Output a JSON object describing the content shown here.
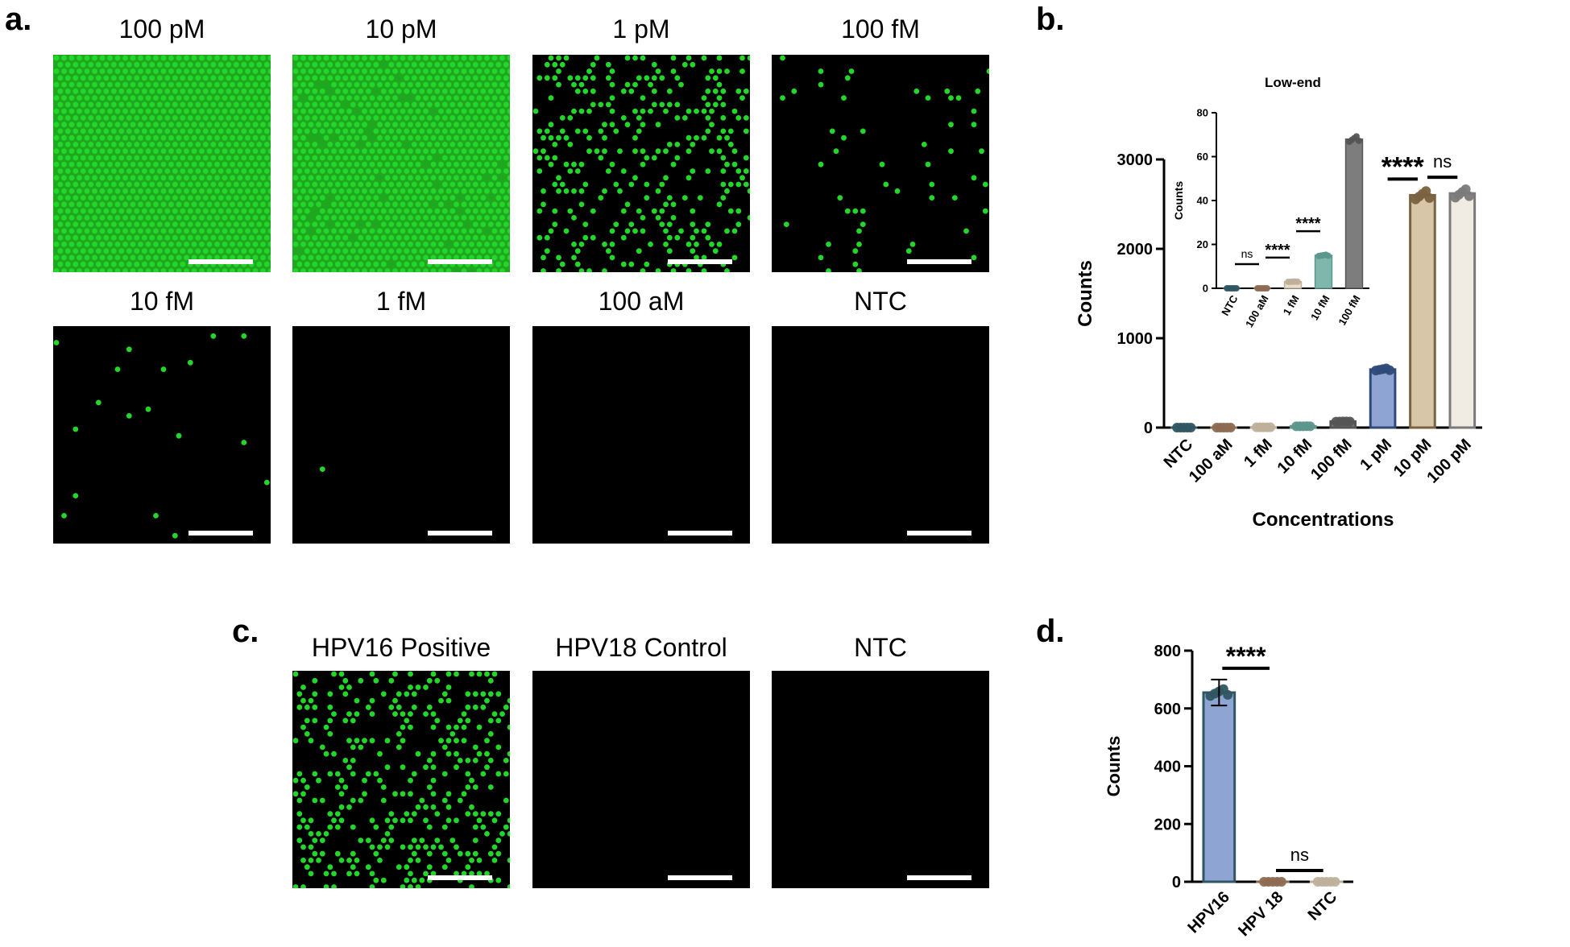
{
  "panel_a": {
    "letter": "a.",
    "tiles": [
      {
        "label": "100 pM",
        "fill": "dense"
      },
      {
        "label": "10 pM",
        "fill": "dense_holes"
      },
      {
        "label": "1 pM",
        "fill": "medium"
      },
      {
        "label": "100 fM",
        "fill": "sparse"
      },
      {
        "label": "10 fM",
        "fill": "very_sparse"
      },
      {
        "label": "1 fM",
        "fill": "near_empty"
      },
      {
        "label": "100 aM",
        "fill": "empty"
      },
      {
        "label": "NTC",
        "fill": "empty"
      }
    ]
  },
  "panel_c": {
    "letter": "c.",
    "tiles": [
      {
        "label": "HPV16 Positive",
        "fill": "medium"
      },
      {
        "label": "HPV18 Control",
        "fill": "empty"
      },
      {
        "label": "NTC",
        "fill": "empty"
      }
    ]
  },
  "colors": {
    "signal_green": "#22d62a",
    "dense_background": "#1fa81f",
    "ntc": "#3e6d7d",
    "c100aM": "#b38e74",
    "c1fM": "#e8dccb",
    "c10fM": "#7fb7ad",
    "c100fM": "#7d7d7d",
    "c1pM": "#8ea4d2",
    "c10pM": "#d8c6a9",
    "c100pM": "#f0ebe3",
    "hpv16": "#8ea4d2",
    "hpv18": "#d8c6a9",
    "ntc_d": "#f0ebe3"
  },
  "chart_data": [
    {
      "panel": "b.",
      "type": "bar",
      "xlabel": "Concentrations",
      "ylabel": "Counts",
      "categories": [
        "NTC",
        "100 aM",
        "1 fM",
        "10 fM",
        "100 fM",
        "1 pM",
        "10 pM",
        "100 pM"
      ],
      "values": [
        0,
        0,
        3,
        15,
        68,
        650,
        2600,
        2620
      ],
      "ylim": [
        0,
        3000
      ],
      "yticks": [
        "0",
        "1000",
        "2000",
        "3000"
      ],
      "significance": [
        {
          "between": [
            "1 pM",
            "10 pM"
          ],
          "label": "****"
        },
        {
          "between": [
            "10 pM",
            "100 pM"
          ],
          "label": "ns"
        }
      ]
    },
    {
      "panel": "b-inset",
      "type": "bar",
      "title": "Low-end",
      "ylabel": "Counts",
      "categories": [
        "NTC",
        "100 aM",
        "1 fM",
        "10 fM",
        "100 fM"
      ],
      "values": [
        0,
        0,
        3,
        15,
        68
      ],
      "ylim": [
        0,
        80
      ],
      "yticks": [
        "0",
        "20",
        "40",
        "60",
        "80"
      ],
      "significance": [
        {
          "between": [
            "NTC",
            "100 aM"
          ],
          "label": "ns"
        },
        {
          "between": [
            "100 aM",
            "1 fM"
          ],
          "label": "****"
        },
        {
          "between": [
            "1 fM",
            "10 fM"
          ],
          "label": "****"
        }
      ]
    },
    {
      "panel": "d.",
      "type": "bar",
      "ylabel": "Counts",
      "categories": [
        "HPV16",
        "HPV 18",
        "NTC"
      ],
      "values": [
        655,
        0,
        0
      ],
      "error": [
        45,
        0,
        0
      ],
      "ylim": [
        0,
        800
      ],
      "yticks": [
        "0",
        "200",
        "400",
        "600",
        "800"
      ],
      "significance": [
        {
          "between": [
            "HPV16",
            "HPV 18"
          ],
          "label": "****"
        },
        {
          "between": [
            "HPV 18",
            "NTC"
          ],
          "label": "ns"
        }
      ]
    }
  ]
}
